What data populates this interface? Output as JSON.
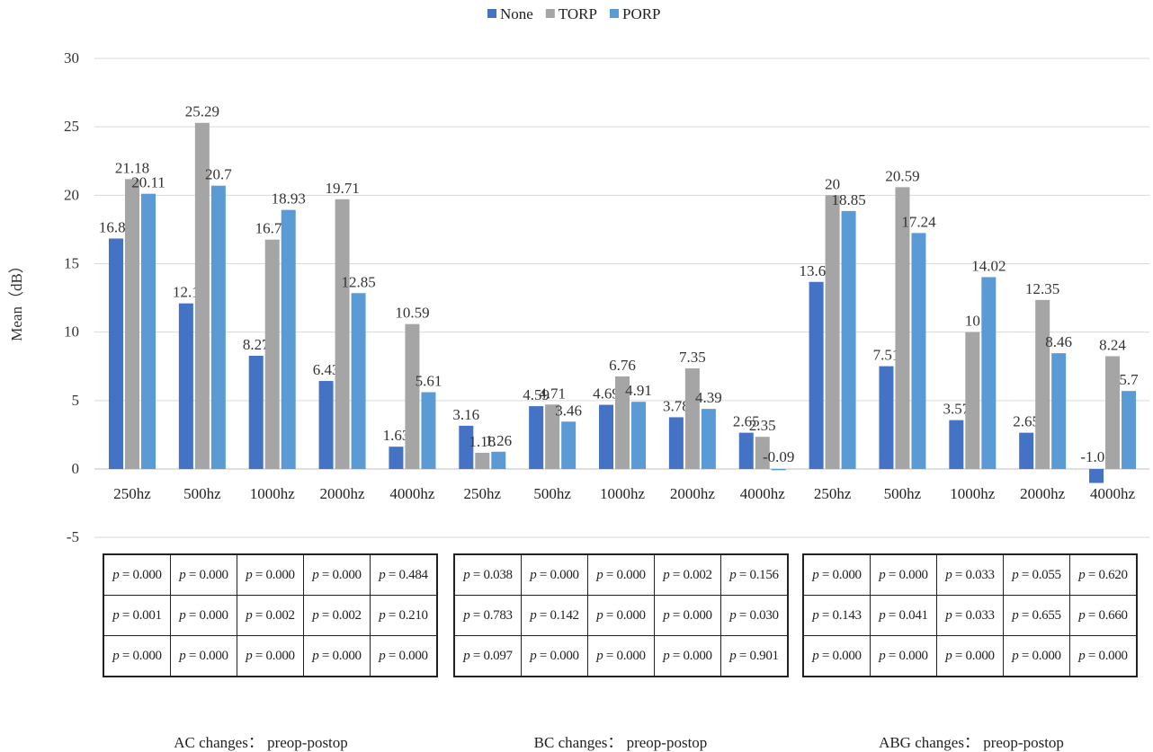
{
  "chart_data": {
    "type": "bar",
    "ylabel": "Mean（dB）",
    "ylim": [
      -5,
      30
    ],
    "yticks": [
      -5,
      0,
      5,
      10,
      15,
      20,
      25,
      30
    ],
    "grid": true,
    "legend_position": "top",
    "categories": [
      "250hz",
      "500hz",
      "1000hz",
      "2000hz",
      "4000hz",
      "250hz",
      "500hz",
      "1000hz",
      "2000hz",
      "4000hz",
      "250hz",
      "500hz",
      "1000hz",
      "2000hz",
      "4000hz"
    ],
    "series": [
      {
        "name": "None",
        "color": "#4472C4",
        "values": [
          16.84,
          12.1,
          8.27,
          6.43,
          1.63,
          3.16,
          4.59,
          4.69,
          3.78,
          2.65,
          13.67,
          7.51,
          3.57,
          2.65,
          -1.02
        ]
      },
      {
        "name": "TORP",
        "color": "#A5A5A5",
        "values": [
          21.18,
          25.29,
          16.76,
          19.71,
          10.59,
          1.18,
          4.71,
          6.76,
          7.35,
          2.35,
          20,
          20.59,
          10,
          12.35,
          8.24
        ]
      },
      {
        "name": "PORP",
        "color": "#5B9BD5",
        "values": [
          20.11,
          20.7,
          18.93,
          12.85,
          5.61,
          1.26,
          3.46,
          4.91,
          4.39,
          -0.09,
          18.85,
          17.24,
          14.02,
          8.46,
          5.7
        ]
      }
    ]
  },
  "groups": [
    {
      "caption": "AC changes： preop-postop",
      "p_rows": [
        [
          "0.000",
          "0.000",
          "0.000",
          "0.000",
          "0.484"
        ],
        [
          "0.001",
          "0.000",
          "0.002",
          "0.002",
          "0.210"
        ],
        [
          "0.000",
          "0.000",
          "0.000",
          "0.000",
          "0.000"
        ]
      ]
    },
    {
      "caption": "BC changes： preop-postop",
      "p_rows": [
        [
          "0.038",
          "0.000",
          "0.000",
          "0.002",
          "0.156"
        ],
        [
          "0.783",
          "0.142",
          "0.000",
          "0.000",
          "0.030"
        ],
        [
          "0.097",
          "0.000",
          "0.000",
          "0.000",
          "0.901"
        ]
      ]
    },
    {
      "caption": "ABG changes： preop-postop",
      "p_rows": [
        [
          "0.000",
          "0.000",
          "0.033",
          "0.055",
          "0.620"
        ],
        [
          "0.143",
          "0.041",
          "0.033",
          "0.655",
          "0.660"
        ],
        [
          "0.000",
          "0.000",
          "0.000",
          "0.000",
          "0.000"
        ]
      ]
    }
  ],
  "p_prefix": "p",
  "p_equals": " = "
}
